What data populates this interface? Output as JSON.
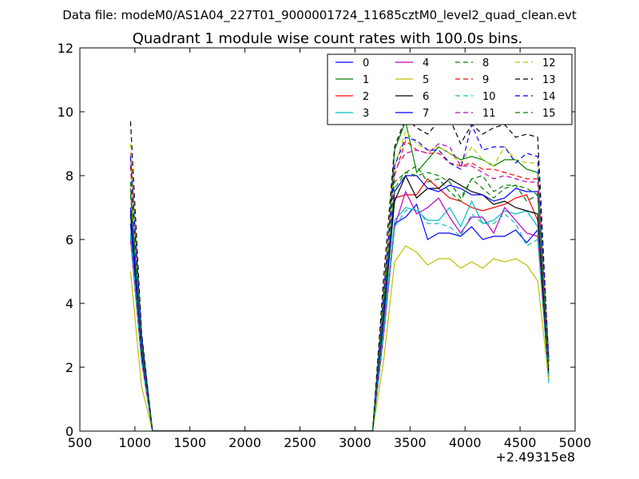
{
  "chart_data": {
    "type": "line",
    "suptitle": "Data file: modeM0/AS1A04_227T01_9000001724_11685cztM0_level2_quad_clean.evt",
    "title": "Quadrant 1 module wise count rates with 100.0s bins.",
    "xlabel": "",
    "ylabel": "",
    "x_offset_label": "+2.49315e8",
    "xlim": [
      500,
      5000
    ],
    "ylim": [
      0,
      12
    ],
    "xticks": [
      500,
      1000,
      1500,
      2000,
      2500,
      3000,
      3500,
      4000,
      4500,
      5000
    ],
    "yticks": [
      0,
      2,
      4,
      6,
      8,
      10,
      12
    ],
    "grid": false,
    "legend_position": "top-right",
    "x": [
      960,
      1060,
      1160,
      1260,
      1360,
      1460,
      1560,
      1660,
      1760,
      1860,
      1960,
      2060,
      2160,
      2260,
      2360,
      2460,
      2560,
      2660,
      2760,
      2860,
      2960,
      3060,
      3160,
      3260,
      3360,
      3460,
      3560,
      3660,
      3760,
      3860,
      3960,
      4060,
      4160,
      4260,
      4360,
      4460,
      4560,
      4660,
      4760
    ],
    "series": [
      {
        "name": "0",
        "color": "#0000ff",
        "dash": "solid",
        "values": [
          6.5,
          2.4,
          0,
          0,
          0,
          0,
          0,
          0,
          0,
          0,
          0,
          0,
          0,
          0,
          0,
          0,
          0,
          0,
          0,
          0,
          0,
          0,
          0,
          3.3,
          6.5,
          6.7,
          7.1,
          6.0,
          6.2,
          6.2,
          6.1,
          6.4,
          6.0,
          6.1,
          6.1,
          6.3,
          5.9,
          6.3,
          1.6
        ]
      },
      {
        "name": "1",
        "color": "#008000",
        "dash": "solid",
        "values": [
          7.6,
          2.7,
          0,
          0,
          0,
          0,
          0,
          0,
          0,
          0,
          0,
          0,
          0,
          0,
          0,
          0,
          0,
          0,
          0,
          0,
          0,
          0,
          0,
          4.0,
          8.8,
          9.7,
          8.1,
          8.5,
          8.9,
          8.7,
          8.5,
          8.6,
          8.5,
          8.3,
          8.5,
          8.5,
          8.2,
          8.1,
          2.0
        ]
      },
      {
        "name": "2",
        "color": "#ff0000",
        "dash": "solid",
        "values": [
          6.9,
          2.5,
          0,
          0,
          0,
          0,
          0,
          0,
          0,
          0,
          0,
          0,
          0,
          0,
          0,
          0,
          0,
          0,
          0,
          0,
          0,
          0,
          0,
          3.5,
          7.3,
          7.4,
          7.4,
          7.9,
          7.6,
          7.3,
          7.2,
          7.0,
          6.9,
          7.0,
          7.1,
          7.3,
          7.4,
          6.6,
          1.9
        ]
      },
      {
        "name": "3",
        "color": "#00bfbf",
        "dash": "solid",
        "values": [
          6.2,
          2.3,
          0,
          0,
          0,
          0,
          0,
          0,
          0,
          0,
          0,
          0,
          0,
          0,
          0,
          0,
          0,
          0,
          0,
          0,
          0,
          0,
          0,
          3.2,
          6.6,
          7.0,
          6.9,
          6.6,
          6.6,
          7.0,
          6.4,
          7.2,
          6.5,
          6.6,
          6.9,
          6.8,
          6.9,
          6.4,
          1.5
        ]
      },
      {
        "name": "4",
        "color": "#bf00bf",
        "dash": "solid",
        "values": [
          6.0,
          2.2,
          0,
          0,
          0,
          0,
          0,
          0,
          0,
          0,
          0,
          0,
          0,
          0,
          0,
          0,
          0,
          0,
          0,
          0,
          0,
          0,
          0,
          3.0,
          6.4,
          7.5,
          6.8,
          7.0,
          7.3,
          6.7,
          6.2,
          6.7,
          6.7,
          6.2,
          7.0,
          6.6,
          6.2,
          6.1,
          1.7
        ]
      },
      {
        "name": "5",
        "color": "#bfbf00",
        "dash": "solid",
        "values": [
          5.0,
          1.4,
          0,
          0,
          0,
          0,
          0,
          0,
          0,
          0,
          0,
          0,
          0,
          0,
          0,
          0,
          0,
          0,
          0,
          0,
          0,
          0,
          0,
          2.2,
          5.3,
          5.8,
          5.6,
          5.2,
          5.4,
          5.4,
          5.1,
          5.3,
          5.1,
          5.4,
          5.3,
          5.4,
          5.2,
          4.7,
          1.6
        ]
      },
      {
        "name": "6",
        "color": "#000000",
        "dash": "solid",
        "values": [
          6.8,
          2.5,
          0,
          0,
          0,
          0,
          0,
          0,
          0,
          0,
          0,
          0,
          0,
          0,
          0,
          0,
          0,
          0,
          0,
          0,
          0,
          0,
          0,
          3.6,
          7.2,
          8.0,
          7.3,
          7.6,
          7.6,
          7.9,
          7.7,
          7.5,
          7.4,
          7.1,
          7.2,
          7.0,
          6.9,
          6.8,
          1.8
        ]
      },
      {
        "name": "7",
        "color": "#0000ff",
        "dash": "solid",
        "values": [
          7.0,
          2.6,
          0,
          0,
          0,
          0,
          0,
          0,
          0,
          0,
          0,
          0,
          0,
          0,
          0,
          0,
          0,
          0,
          0,
          0,
          0,
          0,
          0,
          3.7,
          7.5,
          8.0,
          8.0,
          7.6,
          7.5,
          7.7,
          7.6,
          7.4,
          7.4,
          7.2,
          7.3,
          7.6,
          7.5,
          7.5,
          2.2
        ]
      },
      {
        "name": "8",
        "color": "#008000",
        "dash": "dashed",
        "values": [
          7.4,
          2.7,
          0,
          0,
          0,
          0,
          0,
          0,
          0,
          0,
          0,
          0,
          0,
          0,
          0,
          0,
          0,
          0,
          0,
          0,
          0,
          0,
          0,
          3.9,
          7.6,
          8.1,
          8.0,
          8.1,
          8.0,
          7.8,
          7.3,
          7.9,
          8.0,
          7.5,
          7.7,
          7.7,
          7.2,
          7.4,
          2.1
        ]
      },
      {
        "name": "9",
        "color": "#ff0000",
        "dash": "dashed",
        "values": [
          8.3,
          2.9,
          0,
          0,
          0,
          0,
          0,
          0,
          0,
          0,
          0,
          0,
          0,
          0,
          0,
          0,
          0,
          0,
          0,
          0,
          0,
          0,
          0,
          4.3,
          8.0,
          9.1,
          8.8,
          8.7,
          8.7,
          8.4,
          8.3,
          8.4,
          8.2,
          8.2,
          8.1,
          8.0,
          7.9,
          7.9,
          2.4
        ]
      },
      {
        "name": "10",
        "color": "#00bfbf",
        "dash": "dashed",
        "values": [
          6.1,
          2.2,
          0,
          0,
          0,
          0,
          0,
          0,
          0,
          0,
          0,
          0,
          0,
          0,
          0,
          0,
          0,
          0,
          0,
          0,
          0,
          0,
          0,
          3.1,
          6.4,
          6.9,
          7.0,
          6.5,
          6.5,
          6.4,
          6.1,
          6.8,
          6.5,
          6.5,
          6.8,
          6.5,
          5.8,
          6.0,
          1.6
        ]
      },
      {
        "name": "11",
        "color": "#bf00bf",
        "dash": "dashed",
        "values": [
          8.7,
          2.9,
          0,
          0,
          0,
          0,
          0,
          0,
          0,
          0,
          0,
          0,
          0,
          0,
          0,
          0,
          0,
          0,
          0,
          0,
          0,
          0,
          0,
          4.4,
          8.2,
          8.7,
          8.8,
          8.7,
          9.0,
          8.9,
          8.3,
          8.3,
          8.1,
          7.9,
          8.0,
          7.9,
          7.8,
          7.8,
          2.2
        ]
      },
      {
        "name": "12",
        "color": "#bfbf00",
        "dash": "dashed",
        "values": [
          9.0,
          3.0,
          0,
          0,
          0,
          0,
          0,
          0,
          0,
          0,
          0,
          0,
          0,
          0,
          0,
          0,
          0,
          0,
          0,
          0,
          0,
          0,
          0,
          4.5,
          8.3,
          9.4,
          9.0,
          8.8,
          8.9,
          8.7,
          8.4,
          8.9,
          8.5,
          8.3,
          8.9,
          8.5,
          8.4,
          8.4,
          2.1
        ]
      },
      {
        "name": "13",
        "color": "#000000",
        "dash": "dashed",
        "values": [
          9.7,
          3.1,
          0,
          0,
          0,
          0,
          0,
          0,
          0,
          0,
          0,
          0,
          0,
          0,
          0,
          0,
          0,
          0,
          0,
          0,
          0,
          0,
          0,
          4.8,
          8.9,
          9.8,
          9.5,
          9.3,
          9.7,
          9.8,
          9.0,
          9.6,
          9.3,
          9.5,
          9.6,
          9.2,
          9.3,
          9.2,
          2.2
        ]
      },
      {
        "name": "14",
        "color": "#0000ff",
        "dash": "dashed",
        "values": [
          8.6,
          3.0,
          0,
          0,
          0,
          0,
          0,
          0,
          0,
          0,
          0,
          0,
          0,
          0,
          0,
          0,
          0,
          0,
          0,
          0,
          0,
          0,
          0,
          4.3,
          8.3,
          9.2,
          9.1,
          8.8,
          8.8,
          8.4,
          8.2,
          9.6,
          8.8,
          8.9,
          8.9,
          8.4,
          8.7,
          8.6,
          2.3
        ]
      },
      {
        "name": "15",
        "color": "#008000",
        "dash": "dashed",
        "values": [
          7.8,
          2.8,
          0,
          0,
          0,
          0,
          0,
          0,
          0,
          0,
          0,
          0,
          0,
          0,
          0,
          0,
          0,
          0,
          0,
          0,
          0,
          0,
          0,
          4.0,
          7.8,
          8.1,
          8.3,
          7.8,
          7.9,
          7.5,
          7.2,
          7.9,
          7.6,
          7.3,
          7.6,
          7.7,
          7.6,
          7.4,
          2.0
        ]
      }
    ]
  }
}
